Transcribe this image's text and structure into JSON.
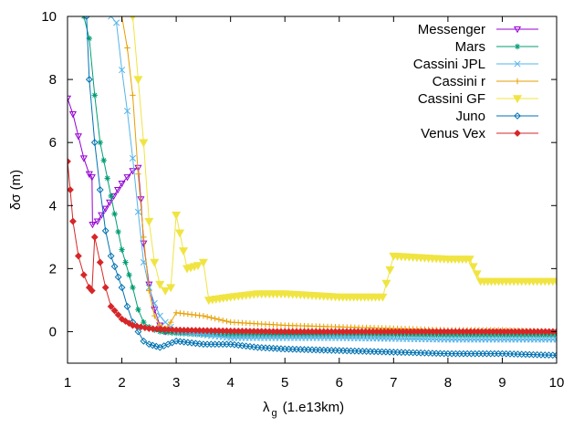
{
  "chart_data": {
    "type": "line",
    "title": "",
    "xlabel": "λ",
    "xlabel_subscript": "g",
    "xlabel_units": "(1.e13km)",
    "ylabel": "δσ (m)",
    "xlim": [
      1,
      10
    ],
    "ylim": [
      -1,
      10
    ],
    "xticks": [
      "1",
      "2",
      "3",
      "4",
      "5",
      "6",
      "7",
      "8",
      "9",
      "10"
    ],
    "yticks": [
      "0",
      "2",
      "4",
      "6",
      "8",
      "10"
    ],
    "legend_position": "top-right",
    "series": [
      {
        "name": "Messenger",
        "color": "#9400d3",
        "marker": "triangle-down-open",
        "x": [
          1.0,
          1.1,
          1.2,
          1.3,
          1.4,
          1.45,
          1.46,
          1.55,
          1.7,
          1.85,
          2.0,
          2.1,
          2.2,
          2.3,
          2.35,
          2.4,
          2.5,
          2.6,
          2.7,
          2.8
        ],
        "y": [
          7.4,
          6.9,
          6.2,
          5.5,
          5.0,
          4.9,
          3.4,
          3.5,
          3.9,
          4.3,
          4.7,
          4.9,
          5.1,
          5.2,
          4.2,
          2.8,
          1.5,
          0.7,
          0.2,
          0.0
        ]
      },
      {
        "name": "Mars",
        "color": "#009e73",
        "marker": "asterisk",
        "x": [
          1.3,
          1.4,
          1.5,
          1.6,
          1.8,
          2.0,
          2.2,
          2.3,
          2.4,
          2.5,
          2.6,
          2.7,
          3.0,
          4.0,
          6.0,
          8.0,
          10.0
        ],
        "y": [
          10.0,
          9.3,
          7.5,
          6.0,
          4.3,
          2.6,
          1.4,
          0.7,
          0.3,
          0.15,
          0.05,
          0.0,
          -0.05,
          -0.1,
          -0.1,
          -0.1,
          -0.1
        ]
      },
      {
        "name": "Cassini JPL",
        "color": "#56b4e9",
        "marker": "x",
        "x": [
          1.8,
          1.9,
          2.0,
          2.1,
          2.2,
          2.3,
          2.4,
          2.5,
          2.6,
          2.7,
          2.8,
          2.9,
          3.0,
          4.0,
          6.0,
          8.0,
          10.0
        ],
        "y": [
          10.0,
          9.8,
          8.3,
          7.0,
          5.5,
          3.8,
          2.2,
          1.4,
          0.9,
          0.5,
          0.3,
          0.15,
          0.0,
          -0.2,
          -0.2,
          -0.25,
          -0.25
        ]
      },
      {
        "name": "Cassini r",
        "color": "#e69f00",
        "marker": "plus",
        "x": [
          2.0,
          2.1,
          2.2,
          2.3,
          2.4,
          2.5,
          2.6,
          2.7,
          2.8,
          2.9,
          3.0,
          3.5,
          4.0,
          5.0,
          6.0,
          7.0,
          8.0,
          9.0,
          10.0
        ],
        "y": [
          10.0,
          9.0,
          7.5,
          5.0,
          3.0,
          1.3,
          0.5,
          0.2,
          0.1,
          0.3,
          0.6,
          0.5,
          0.3,
          0.2,
          0.15,
          0.1,
          0.05,
          0.05,
          0.0
        ]
      },
      {
        "name": "Cassini GF",
        "color": "#f0e442",
        "marker": "triangle-down-filled",
        "x": [
          2.2,
          2.3,
          2.4,
          2.5,
          2.6,
          2.7,
          2.8,
          2.9,
          3.0,
          3.2,
          3.4,
          3.5,
          3.6,
          4.0,
          4.5,
          5.0,
          6.0,
          6.6,
          6.8,
          7.0,
          7.5,
          8.0,
          8.4,
          8.6,
          9.0,
          9.5,
          10.0
        ],
        "y": [
          10.0,
          8.0,
          6.0,
          3.5,
          2.2,
          1.5,
          1.3,
          1.4,
          3.7,
          2.0,
          2.1,
          2.2,
          1.0,
          1.1,
          1.2,
          1.2,
          1.1,
          1.1,
          1.1,
          2.4,
          2.35,
          2.3,
          2.3,
          1.6,
          1.6,
          1.6,
          1.6
        ]
      },
      {
        "name": "Juno",
        "color": "#0072b2",
        "marker": "diamond-open",
        "x": [
          1.35,
          1.4,
          1.5,
          1.6,
          1.7,
          1.8,
          2.0,
          2.1,
          2.2,
          2.3,
          2.4,
          2.5,
          2.7,
          3.0,
          3.5,
          4.0,
          4.5,
          5.0,
          6.0,
          7.0,
          8.0,
          9.0,
          10.0
        ],
        "y": [
          10.0,
          8.0,
          6.0,
          4.5,
          3.2,
          2.4,
          1.4,
          0.8,
          0.3,
          0.0,
          -0.3,
          -0.4,
          -0.5,
          -0.3,
          -0.4,
          -0.4,
          -0.5,
          -0.55,
          -0.6,
          -0.65,
          -0.7,
          -0.7,
          -0.75
        ]
      },
      {
        "name": "Venus Vex",
        "color": "#d62728",
        "marker": "diamond-filled",
        "x": [
          1.0,
          1.05,
          1.1,
          1.2,
          1.3,
          1.4,
          1.45,
          1.5,
          1.6,
          1.7,
          1.8,
          2.0,
          2.2,
          2.5,
          3.0,
          4.0,
          5.0,
          6.0,
          8.0,
          10.0
        ],
        "y": [
          5.4,
          4.5,
          3.5,
          2.4,
          1.8,
          1.4,
          1.3,
          3.0,
          2.2,
          1.4,
          0.8,
          0.4,
          0.2,
          0.1,
          0.05,
          0.02,
          0.0,
          0.0,
          0.0,
          0.0
        ]
      }
    ]
  }
}
